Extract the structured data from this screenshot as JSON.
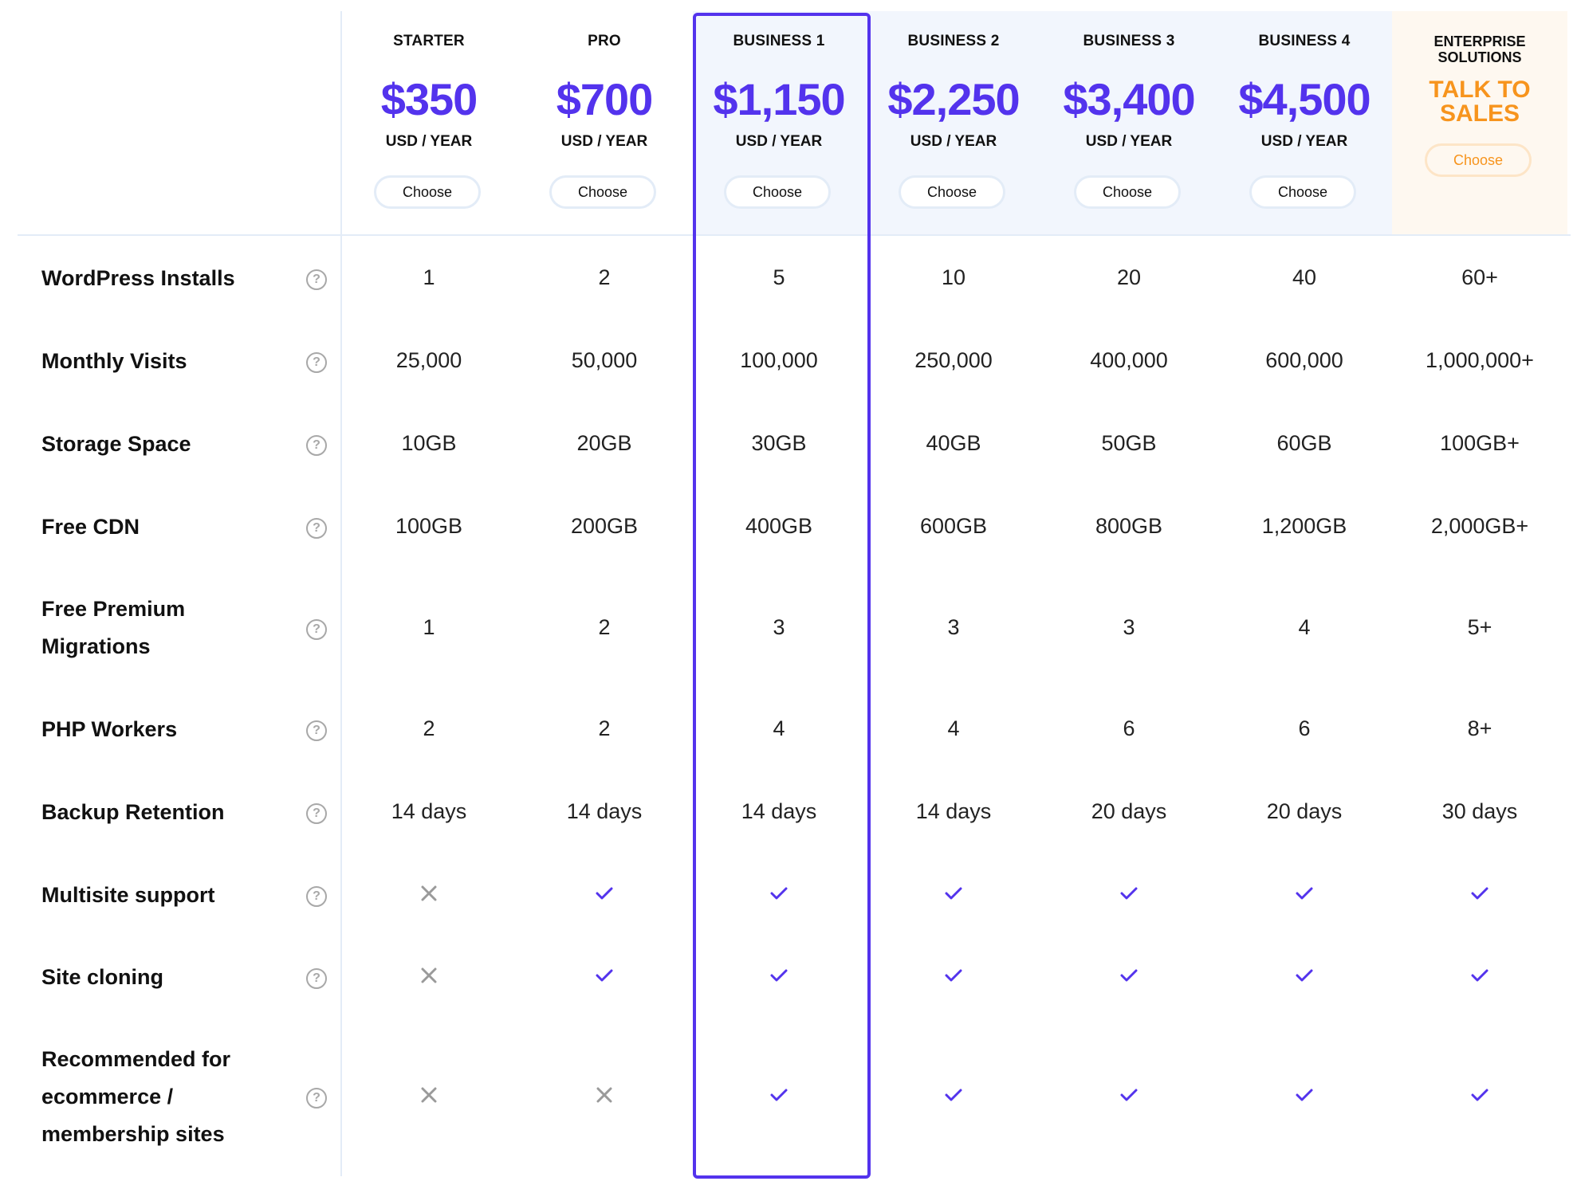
{
  "plans": [
    {
      "name": "STARTER",
      "price": "$350",
      "period": "USD / YEAR",
      "choose": "Choose"
    },
    {
      "name": "PRO",
      "price": "$700",
      "period": "USD / YEAR",
      "choose": "Choose"
    },
    {
      "name": "BUSINESS 1",
      "price": "$1,150",
      "period": "USD / YEAR",
      "choose": "Choose"
    },
    {
      "name": "BUSINESS 2",
      "price": "$2,250",
      "period": "USD / YEAR",
      "choose": "Choose"
    },
    {
      "name": "BUSINESS 3",
      "price": "$3,400",
      "period": "USD / YEAR",
      "choose": "Choose"
    },
    {
      "name": "BUSINESS 4",
      "price": "$4,500",
      "period": "USD / YEAR",
      "choose": "Choose"
    }
  ],
  "enterprise": {
    "name_line1": "ENTERPRISE",
    "name_line2": "SOLUTIONS",
    "sales_line1": "TALK TO",
    "sales_line2": "SALES",
    "choose": "Choose"
  },
  "features": [
    {
      "label": [
        "WordPress Installs"
      ],
      "values": [
        "1",
        "2",
        "5",
        "10",
        "20",
        "40",
        "60+"
      ]
    },
    {
      "label": [
        "Monthly Visits"
      ],
      "values": [
        "25,000",
        "50,000",
        "100,000",
        "250,000",
        "400,000",
        "600,000",
        "1,000,000+"
      ]
    },
    {
      "label": [
        "Storage Space"
      ],
      "values": [
        "10GB",
        "20GB",
        "30GB",
        "40GB",
        "50GB",
        "60GB",
        "100GB+"
      ]
    },
    {
      "label": [
        "Free CDN"
      ],
      "values": [
        "100GB",
        "200GB",
        "400GB",
        "600GB",
        "800GB",
        "1,200GB",
        "2,000GB+"
      ]
    },
    {
      "label": [
        "Free Premium",
        "Migrations"
      ],
      "values": [
        "1",
        "2",
        "3",
        "3",
        "3",
        "4",
        "5+"
      ]
    },
    {
      "label": [
        "PHP Workers"
      ],
      "values": [
        "2",
        "2",
        "4",
        "4",
        "6",
        "6",
        "8+"
      ]
    },
    {
      "label": [
        "Backup Retention"
      ],
      "values": [
        "14 days",
        "14 days",
        "14 days",
        "14 days",
        "20 days",
        "20 days",
        "30 days"
      ]
    },
    {
      "label": [
        "Multisite support"
      ],
      "values": [
        "cross-icon",
        "check-icon",
        "check-icon",
        "check-icon",
        "check-icon",
        "check-icon",
        "check-icon"
      ]
    },
    {
      "label": [
        "Site cloning"
      ],
      "values": [
        "cross-icon",
        "check-icon",
        "check-icon",
        "check-icon",
        "check-icon",
        "check-icon",
        "check-icon"
      ]
    },
    {
      "label": [
        "Recommended for",
        "ecommerce /",
        "membership sites"
      ],
      "values": [
        "cross-icon",
        "cross-icon",
        "check-icon",
        "check-icon",
        "check-icon",
        "check-icon",
        "check-icon"
      ]
    }
  ],
  "help_glyph": "?",
  "colors": {
    "accent": "#5333ed",
    "enterprise": "#f7941d",
    "highlight_bg": "#f2f6fd",
    "enterprise_bg": "#fef8f0",
    "cross": "#9a9a9a",
    "divider": "#e3ecf7"
  }
}
